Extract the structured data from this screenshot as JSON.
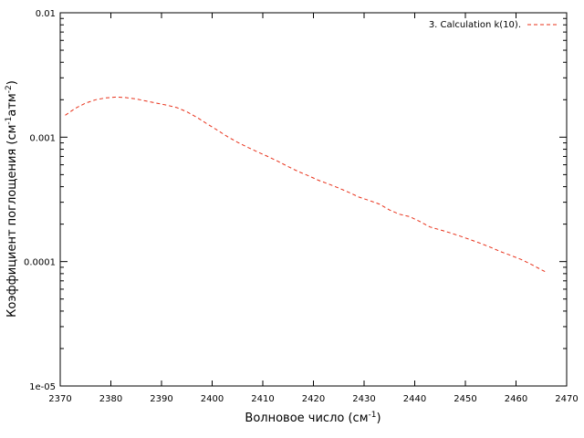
{
  "chart_data": {
    "type": "line",
    "title": "",
    "xlabel": "Волновое число (см",
    "xlabel_sup": "-1",
    "xlabel_end": ")",
    "ylabel_pre": "Коэффициент поглощения (см",
    "ylabel_sup1": "-1",
    "ylabel_mid": "атм",
    "ylabel_sup2": "-2",
    "ylabel_end": ")",
    "x_range": [
      2370,
      2470
    ],
    "y_range": [
      1e-05,
      0.01
    ],
    "y_scale": "log",
    "grid": false,
    "legend_position": "top-right",
    "x_ticks": [
      "2370",
      "2380",
      "2390",
      "2400",
      "2410",
      "2420",
      "2430",
      "2440",
      "2450",
      "2460",
      "2470"
    ],
    "y_ticks": [
      "1e-05",
      "0.0001",
      "0.001",
      "0.01"
    ],
    "series": [
      {
        "name": "3. Calculation k(10).",
        "color": "#e8311a",
        "line_style": "dashed",
        "x": [
          2371,
          2373,
          2375,
          2377,
          2379,
          2381,
          2383,
          2385,
          2387,
          2389,
          2391,
          2393,
          2395,
          2397,
          2399,
          2401,
          2403,
          2405,
          2407,
          2409,
          2411,
          2413,
          2415,
          2417,
          2419,
          2421,
          2423,
          2425,
          2427,
          2429,
          2431,
          2433,
          2435,
          2437,
          2439,
          2441,
          2443,
          2445,
          2447,
          2449,
          2451,
          2453,
          2455,
          2457,
          2459,
          2461,
          2463,
          2465,
          2466
        ],
        "y": [
          0.0015,
          0.00171,
          0.00188,
          0.002,
          0.00207,
          0.0021,
          0.00208,
          0.00203,
          0.00195,
          0.00188,
          0.00181,
          0.00173,
          0.0016,
          0.00144,
          0.00128,
          0.00114,
          0.00101,
          0.00091,
          0.00083,
          0.00076,
          0.0007,
          0.00064,
          0.00058,
          0.00053,
          0.00049,
          0.00045,
          0.00042,
          0.00039,
          0.00036,
          0.00033,
          0.00031,
          0.00029,
          0.00026,
          0.00024,
          0.00023,
          0.00021,
          0.00019,
          0.00018,
          0.00017,
          0.00016,
          0.00015,
          0.00014,
          0.00013,
          0.00012,
          0.000112,
          0.000104,
          9.5e-05,
          8.6e-05,
          8.2e-05
        ]
      }
    ]
  }
}
